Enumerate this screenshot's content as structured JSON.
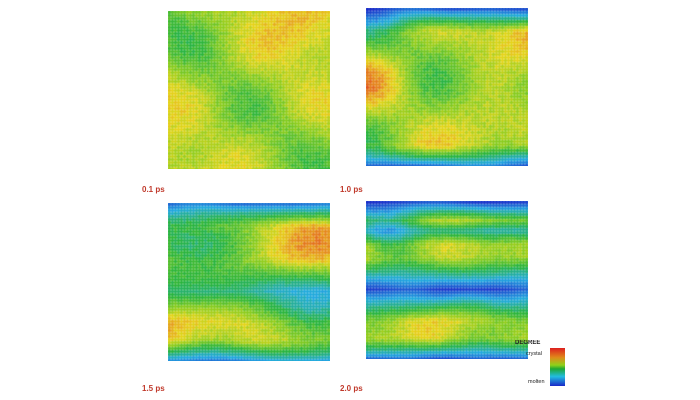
{
  "panels": [
    {
      "label": "0.1 ps",
      "pattern": "mostly crystal, scattered molten-green patches"
    },
    {
      "label": "1.0 ps",
      "pattern": "thin molten bands at top and bottom edges"
    },
    {
      "label": "1.5 ps",
      "pattern": "molten bands at edges and across the middle"
    },
    {
      "label": "2.0 ps",
      "pattern": "wide molten bands at top, middle and bottom"
    }
  ],
  "legend": {
    "title": "DEGREE",
    "top_label": "crystal",
    "bottom_label": "molten"
  },
  "colors": {
    "crystal": "#dd1f1f",
    "intermediate": "#e6d51a",
    "green": "#28b43c",
    "cyan": "#22bde0",
    "molten": "#1a28c8",
    "time_label": "#c0392b"
  }
}
